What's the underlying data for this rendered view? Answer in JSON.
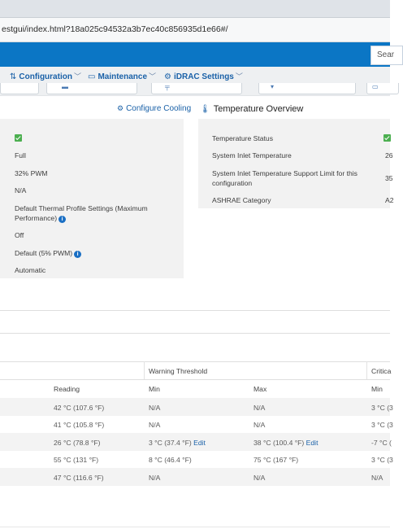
{
  "browser": {
    "url": "estgui/index.html?18a025c94532a3b7ec40c856935d1e66#/"
  },
  "banner": {
    "search_text": "Sear"
  },
  "nav": {
    "items": [
      {
        "label": "Configuration",
        "icon": "sliders-icon"
      },
      {
        "label": "Maintenance",
        "icon": "maintenance-icon"
      },
      {
        "label": "iDRAC Settings",
        "icon": "settings-icon"
      }
    ]
  },
  "cooling": {
    "configure_link": "Configure Cooling",
    "rows": [
      {
        "value": "",
        "status_icon": "ok-check"
      },
      {
        "value": "Full"
      },
      {
        "value": "32% PWM"
      },
      {
        "value": "N/A"
      },
      {
        "value": "Default Thermal Profile Settings (Maximum Performance)",
        "info": true
      },
      {
        "value": "Off"
      },
      {
        "value": "Default (5% PWM)",
        "info": true
      },
      {
        "value": "Automatic"
      }
    ]
  },
  "temperature_overview": {
    "title": "Temperature Overview",
    "rows": [
      {
        "label": "Temperature Status",
        "value": "",
        "status_icon": "ok-check"
      },
      {
        "label": "System Inlet Temperature",
        "value": "26"
      },
      {
        "label": "System Inlet Temperature Support Limit for this configuration",
        "value": "35"
      },
      {
        "label": "ASHRAE Category",
        "value": "A2"
      }
    ]
  },
  "probes_table": {
    "group_headers": {
      "warning": "Warning Threshold",
      "critical": "Critica"
    },
    "columns": {
      "reading": "Reading",
      "warn_min": "Min",
      "warn_max": "Max",
      "crit_min": "Min"
    },
    "edit_label": "Edit",
    "rows": [
      {
        "reading": "42 °C (107.6 °F)",
        "warn_min": "N/A",
        "warn_max": "N/A",
        "crit_min": "3 °C (3"
      },
      {
        "reading": "41 °C (105.8 °F)",
        "warn_min": "N/A",
        "warn_max": "N/A",
        "crit_min": "3 °C (3"
      },
      {
        "reading": "26 °C (78.8 °F)",
        "warn_min": "3 °C (37.4 °F)",
        "warn_max": "38 °C (100.4 °F)",
        "crit_min": "-7 °C (",
        "editable": true
      },
      {
        "reading": "55 °C (131 °F)",
        "warn_min": "8 °C (46.4 °F)",
        "warn_max": "75 °C (167 °F)",
        "crit_min": "3 °C (3"
      },
      {
        "reading": "47 °C (116.6 °F)",
        "warn_min": "N/A",
        "warn_max": "N/A",
        "crit_min": "N/A"
      }
    ]
  }
}
